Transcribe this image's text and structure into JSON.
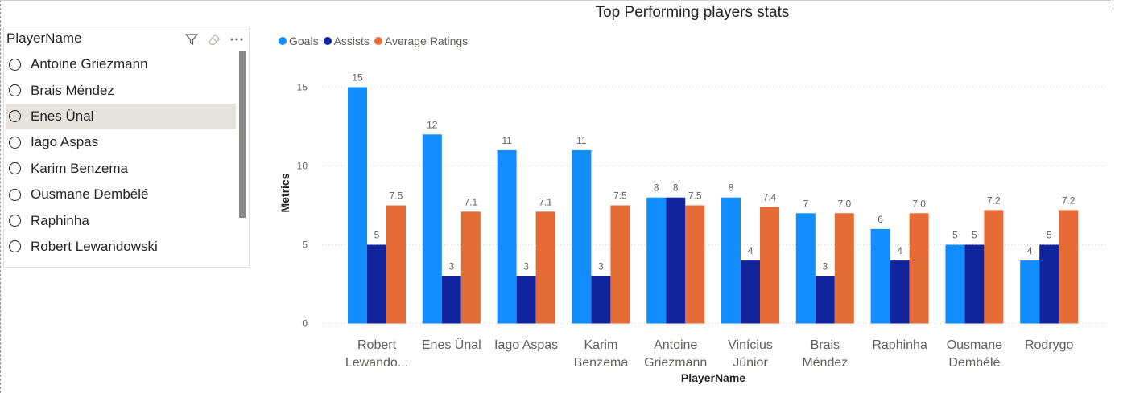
{
  "slicer": {
    "title": "PlayerName",
    "items": [
      {
        "label": "Antoine Griezmann",
        "selected": false
      },
      {
        "label": "Brais Méndez",
        "selected": false
      },
      {
        "label": "Enes Ünal",
        "selected": true
      },
      {
        "label": "Iago Aspas",
        "selected": false
      },
      {
        "label": "Karim Benzema",
        "selected": false
      },
      {
        "label": "Ousmane Dembélé",
        "selected": false
      },
      {
        "label": "Raphinha",
        "selected": false
      },
      {
        "label": "Robert Lewandowski",
        "selected": false
      }
    ],
    "icons": [
      "filter-icon",
      "eraser-icon",
      "more-options-icon"
    ]
  },
  "chart_data": {
    "type": "bar",
    "title": "Top Performing players stats",
    "xlabel": "PlayerName",
    "ylabel": "Metrics",
    "ylim": [
      0,
      16
    ],
    "yticks": [
      0,
      5,
      10,
      15
    ],
    "grid": true,
    "legend_position": "top-left",
    "categories": [
      [
        "Robert",
        "Lewando..."
      ],
      [
        "Enes Ünal"
      ],
      [
        "Iago Aspas"
      ],
      [
        "Karim",
        "Benzema"
      ],
      [
        "Antoine",
        "Griezmann"
      ],
      [
        "Vinícius",
        "Júnior"
      ],
      [
        "Brais",
        "Méndez"
      ],
      [
        "Raphinha"
      ],
      [
        "Ousmane",
        "Dembélé"
      ],
      [
        "Rodrygo"
      ]
    ],
    "series": [
      {
        "name": "Goals",
        "color": "#118dff",
        "values": [
          15,
          12,
          11,
          11,
          8,
          8,
          7,
          6,
          5,
          4
        ],
        "labels": [
          "15",
          "12",
          "11",
          "11",
          "8",
          "8",
          "7",
          "6",
          "5",
          "4"
        ]
      },
      {
        "name": "Assists",
        "color": "#12239e",
        "values": [
          5,
          3,
          3,
          3,
          8,
          4,
          3,
          4,
          5,
          5
        ],
        "labels": [
          "5",
          "3",
          "3",
          "3",
          "8",
          "4",
          "3",
          "4",
          "5",
          "5"
        ]
      },
      {
        "name": "Average Ratings",
        "color": "#e66c37",
        "values": [
          7.5,
          7.1,
          7.1,
          7.5,
          7.5,
          7.4,
          7.0,
          7.0,
          7.2,
          7.2
        ],
        "labels": [
          "7.5",
          "7.1",
          "7.1",
          "7.5",
          "7.5",
          "7.4",
          "7.0",
          "7.0",
          "7.2",
          "7.2"
        ]
      }
    ]
  }
}
